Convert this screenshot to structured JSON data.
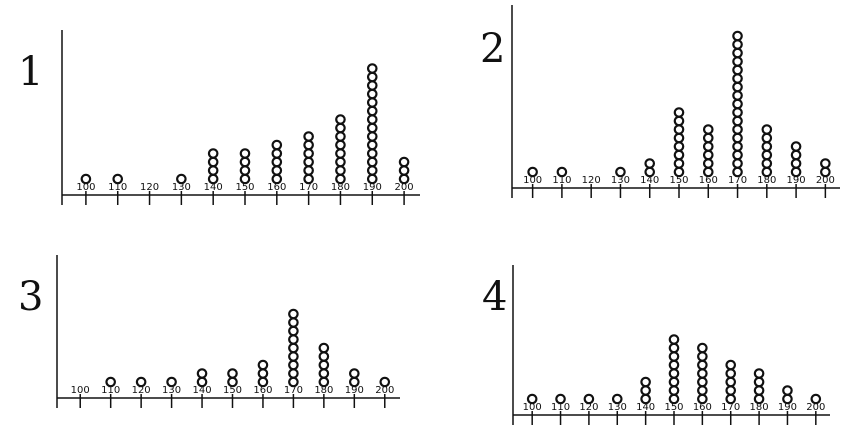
{
  "chart_data": [
    {
      "type": "dot",
      "title": "1",
      "x": [
        100,
        110,
        120,
        130,
        140,
        150,
        160,
        170,
        180,
        190,
        200
      ],
      "values": [
        1,
        1,
        0,
        1,
        4,
        4,
        5,
        6,
        8,
        14,
        3
      ],
      "xlim": [
        95,
        205
      ],
      "xticks": [
        100,
        110,
        120,
        130,
        140,
        150,
        160,
        170,
        180,
        190,
        200
      ]
    },
    {
      "type": "dot",
      "title": "2",
      "x": [
        100,
        110,
        120,
        130,
        140,
        150,
        160,
        170,
        180,
        190,
        200
      ],
      "values": [
        1,
        1,
        0,
        1,
        2,
        8,
        6,
        17,
        6,
        4,
        2
      ],
      "xlim": [
        95,
        205
      ],
      "xticks": [
        100,
        110,
        120,
        130,
        140,
        150,
        160,
        170,
        180,
        190,
        200
      ]
    },
    {
      "type": "dot",
      "title": "3",
      "x": [
        100,
        110,
        120,
        130,
        140,
        150,
        160,
        170,
        180,
        190,
        200
      ],
      "values": [
        0,
        1,
        1,
        1,
        2,
        2,
        3,
        9,
        5,
        2,
        1
      ],
      "xlim": [
        95,
        205
      ],
      "xticks": [
        100,
        110,
        120,
        130,
        140,
        150,
        160,
        170,
        180,
        190,
        200
      ]
    },
    {
      "type": "dot",
      "title": "4",
      "x": [
        100,
        110,
        120,
        130,
        140,
        150,
        160,
        170,
        180,
        190,
        200
      ],
      "values": [
        1,
        1,
        1,
        1,
        3,
        8,
        7,
        5,
        4,
        2,
        1
      ],
      "xlim": [
        95,
        205
      ],
      "xticks": [
        100,
        110,
        120,
        130,
        140,
        150,
        160,
        170,
        180,
        190,
        200
      ]
    }
  ]
}
